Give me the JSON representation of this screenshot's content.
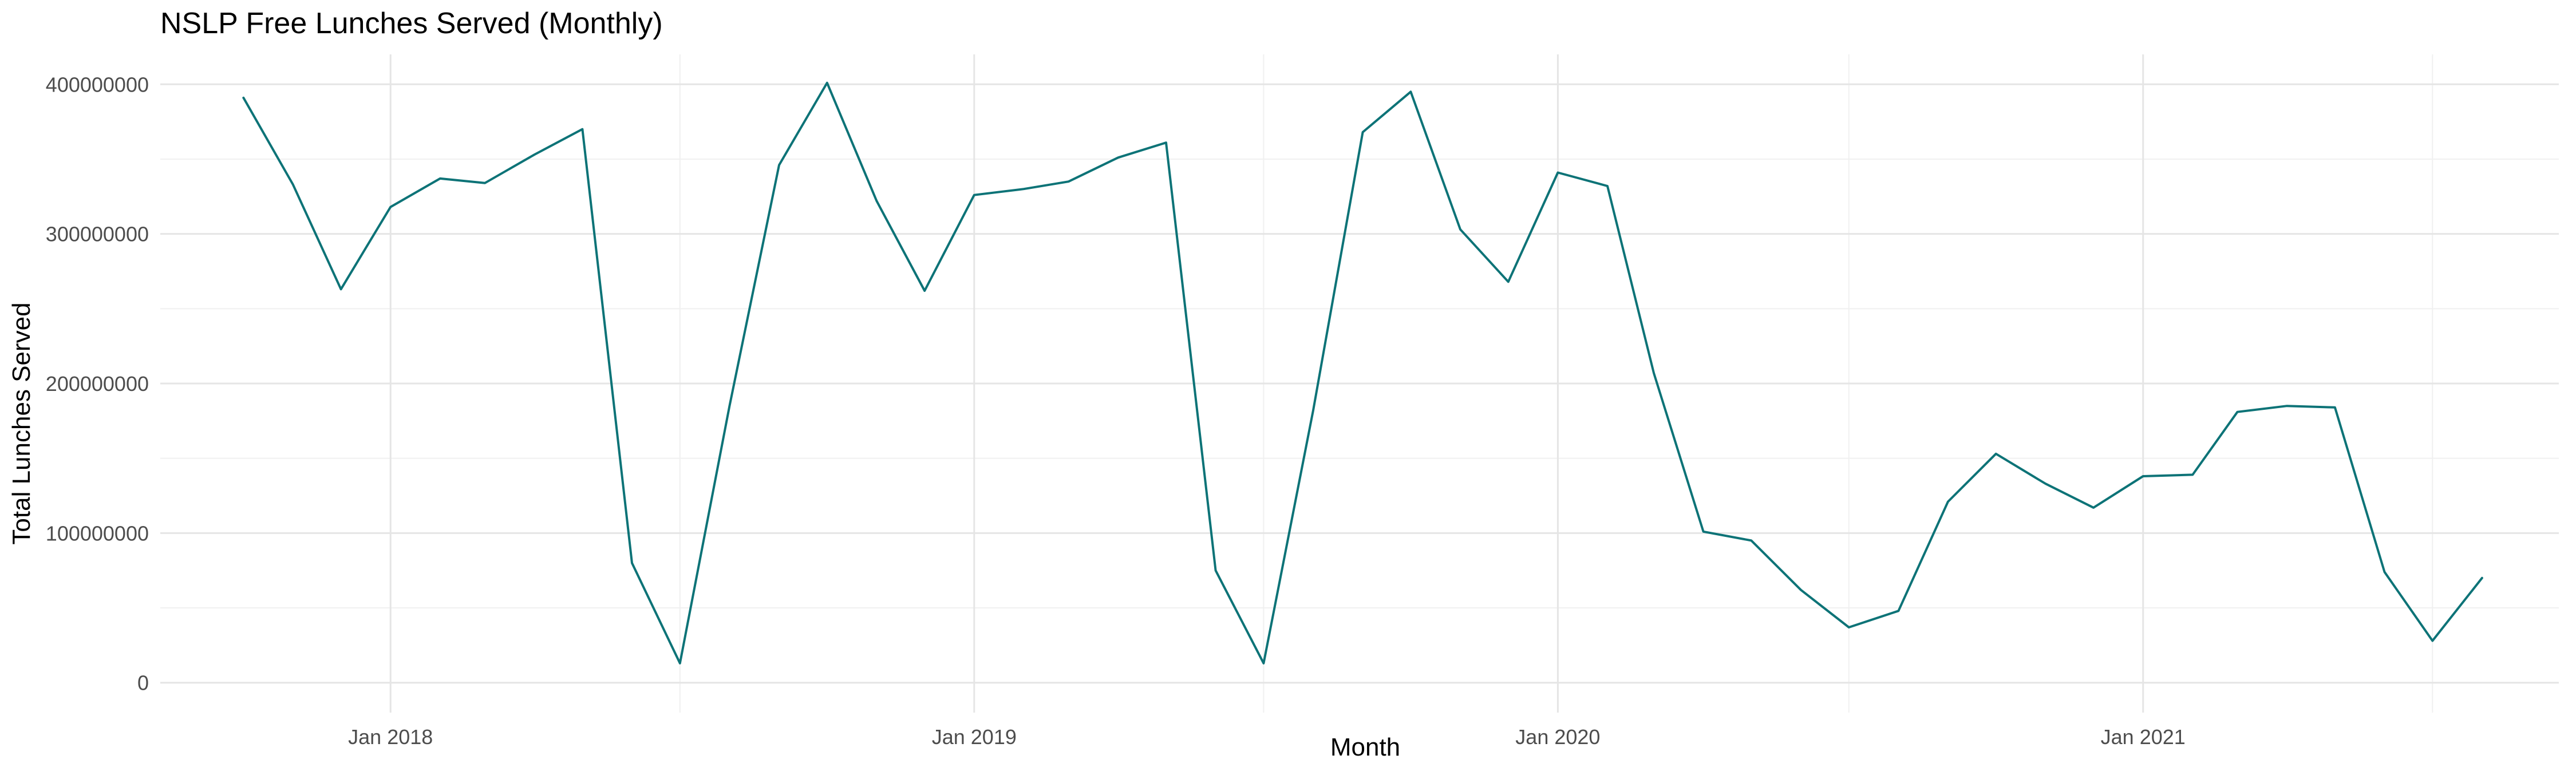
{
  "chart_data": {
    "type": "line",
    "title": "NSLP Free Lunches Served (Monthly)",
    "xlabel": "Month",
    "ylabel": "Total Lunches Served",
    "ylim": [
      -20000000,
      420000000
    ],
    "yticks": [
      0,
      100000000,
      200000000,
      300000000,
      400000000
    ],
    "ytick_labels": [
      "0",
      "100000000",
      "200000000",
      "300000000",
      "400000000"
    ],
    "xlim": [
      "2017-08-10",
      "2021-09-18"
    ],
    "xticks": [
      "2018-01-01",
      "2019-01-01",
      "2020-01-01",
      "2021-01-01"
    ],
    "xtick_labels": [
      "Jan 2018",
      "Jan 2019",
      "Jan 2020",
      "Jan 2021"
    ],
    "x_minor_ticks": [
      "2017-07-01",
      "2018-07-01",
      "2019-07-01",
      "2020-07-01",
      "2021-07-01"
    ],
    "grid": true,
    "line_color": "#0d7377",
    "series": [
      {
        "x": [
          "2017-10-01",
          "2017-11-01",
          "2017-12-01",
          "2018-01-01",
          "2018-02-01",
          "2018-03-01",
          "2018-04-01",
          "2018-05-01",
          "2018-06-01",
          "2018-07-01",
          "2018-08-01",
          "2018-09-01",
          "2018-10-01",
          "2018-11-01",
          "2018-12-01",
          "2019-01-01",
          "2019-02-01",
          "2019-03-01",
          "2019-04-01",
          "2019-05-01",
          "2019-06-01",
          "2019-07-01",
          "2019-08-01",
          "2019-09-01",
          "2019-10-01",
          "2019-11-01",
          "2019-12-01",
          "2020-01-01",
          "2020-02-01",
          "2020-03-01",
          "2020-04-01",
          "2020-05-01",
          "2020-06-01",
          "2020-07-01",
          "2020-08-01",
          "2020-09-01",
          "2020-10-01",
          "2020-11-01",
          "2020-12-01",
          "2021-01-01",
          "2021-02-01",
          "2021-03-01",
          "2021-04-01",
          "2021-05-01",
          "2021-06-01",
          "2021-07-01",
          "2021-08-01"
        ],
        "values": [
          391000000,
          333000000,
          263000000,
          318000000,
          337000000,
          334000000,
          353000000,
          370000000,
          80000000,
          13000000,
          185000000,
          346000000,
          401000000,
          322000000,
          262000000,
          326000000,
          330000000,
          335000000,
          351000000,
          361000000,
          75000000,
          13000000,
          182000000,
          368000000,
          395000000,
          303000000,
          268000000,
          341000000,
          332000000,
          207000000,
          101000000,
          95000000,
          62000000,
          37000000,
          48000000,
          121000000,
          153000000,
          133000000,
          117000000,
          138000000,
          139000000,
          181000000,
          185000000,
          184000000,
          74000000,
          28000000,
          70000000
        ]
      }
    ]
  }
}
